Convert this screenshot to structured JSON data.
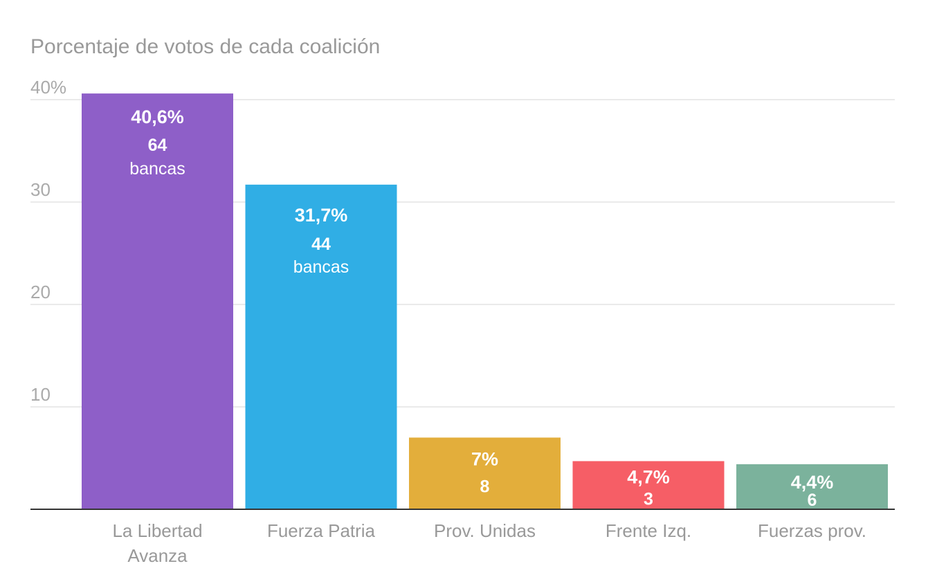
{
  "chart_data": {
    "type": "bar",
    "title": "Porcentaje de votos de cada coalición",
    "xlabel": "",
    "ylabel": "",
    "ylim": [
      0,
      40
    ],
    "yticks": [
      {
        "value": 40,
        "label": "40%"
      },
      {
        "value": 30,
        "label": "30"
      },
      {
        "value": 20,
        "label": "20"
      },
      {
        "value": 10,
        "label": "10"
      }
    ],
    "grid": true,
    "categories": [
      [
        "La Libertad",
        "Avanza"
      ],
      [
        "Fuerza Patria"
      ],
      [
        "Prov. Unidas"
      ],
      [
        "Frente Izq."
      ],
      [
        "Fuerzas prov."
      ]
    ],
    "values": [
      40.6,
      31.7,
      7,
      4.7,
      4.4
    ],
    "value_labels": [
      "40,6%",
      "31,7%",
      "7%",
      "4,7%",
      "4,4%"
    ],
    "seats": [
      "64",
      "44",
      "8",
      "3",
      "6"
    ],
    "seats_unit": [
      "bancas",
      "bancas",
      "",
      "",
      ""
    ],
    "colors": [
      "#8e5fc8",
      "#30aee5",
      "#e3ae3b",
      "#f65e66",
      "#7bb29c"
    ]
  }
}
